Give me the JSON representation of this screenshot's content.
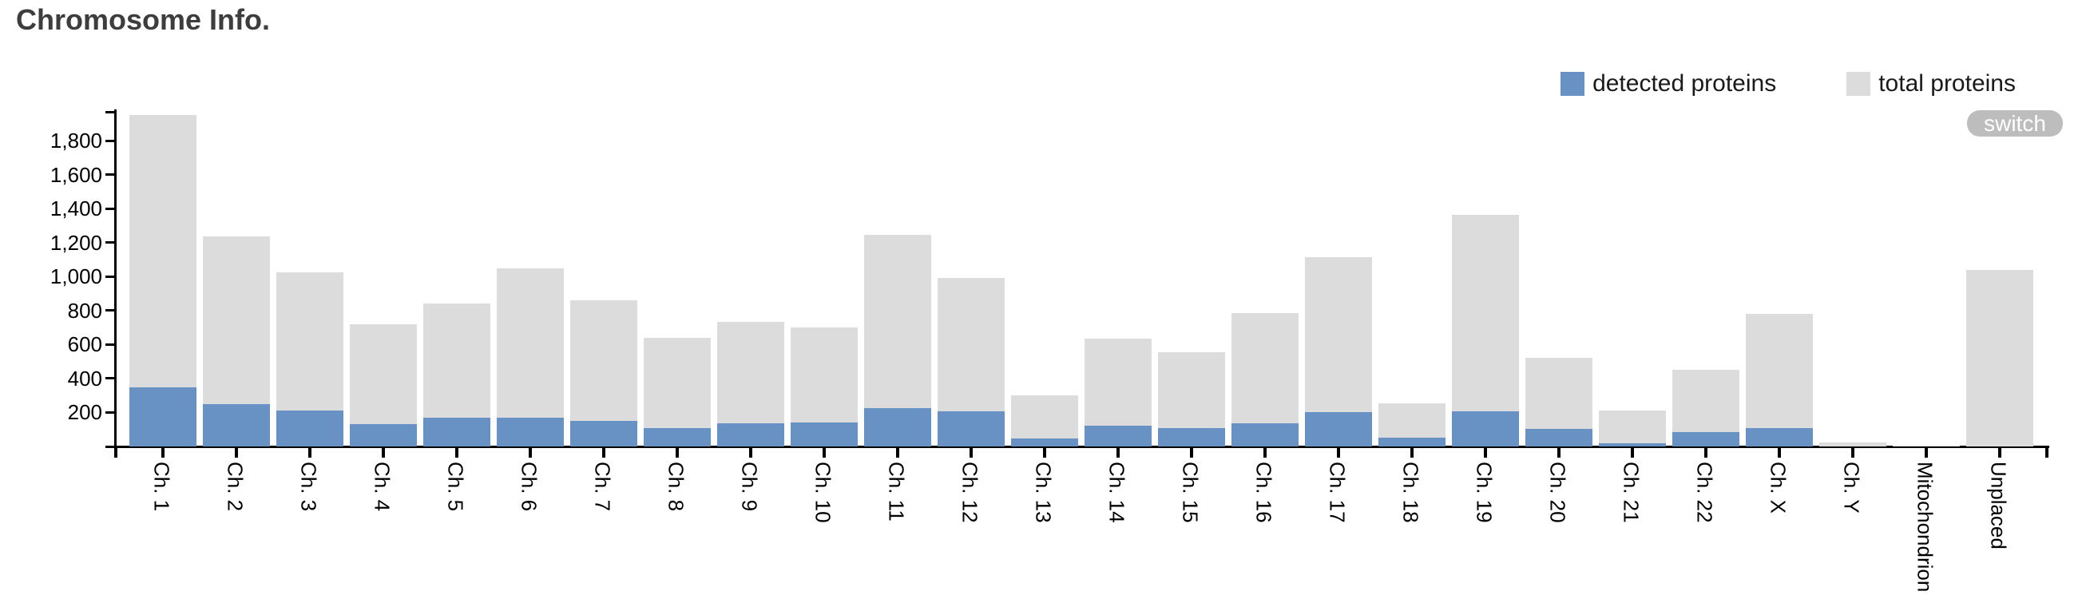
{
  "title": "Chromosome Info.",
  "legend": {
    "detected": "detected proteins",
    "total": "total proteins"
  },
  "switch_label": "switch",
  "colors": {
    "detected": "#6892c4",
    "total": "#dcdcdc",
    "axis": "#000000",
    "title": "#3d3d3d",
    "switch_bg": "#bdbdbd",
    "switch_text": "#ffffff"
  },
  "chart_data": {
    "type": "bar",
    "subtype": "overlay",
    "title": "Chromosome Info.",
    "xlabel": "",
    "ylabel": "",
    "grid": false,
    "legend_position": "top-right",
    "ylim": [
      0,
      1970
    ],
    "yticks": [
      200,
      400,
      600,
      800,
      1000,
      1200,
      1400,
      1600,
      1800
    ],
    "ytick_labels": [
      "200",
      "400",
      "600",
      "800",
      "1,000",
      "1,200",
      "1,400",
      "1,600",
      "1,800"
    ],
    "categories": [
      "Ch. 1",
      "Ch. 2",
      "Ch. 3",
      "Ch. 4",
      "Ch. 5",
      "Ch. 6",
      "Ch. 7",
      "Ch. 8",
      "Ch. 9",
      "Ch. 10",
      "Ch. 11",
      "Ch. 12",
      "Ch. 13",
      "Ch. 14",
      "Ch. 15",
      "Ch. 16",
      "Ch. 17",
      "Ch. 18",
      "Ch. 19",
      "Ch. 20",
      "Ch. 21",
      "Ch. 22",
      "Ch. X",
      "Ch. Y",
      "Mitochondrion",
      "Unplaced"
    ],
    "series": [
      {
        "name": "total proteins",
        "color": "#dcdcdc",
        "values": [
          1950,
          1235,
          1025,
          720,
          840,
          1050,
          860,
          640,
          735,
          700,
          1245,
          990,
          300,
          635,
          555,
          785,
          1115,
          255,
          1365,
          520,
          210,
          450,
          780,
          25,
          5,
          1040
        ]
      },
      {
        "name": "detected proteins",
        "color": "#6892c4",
        "values": [
          350,
          250,
          210,
          130,
          170,
          170,
          150,
          110,
          135,
          140,
          225,
          205,
          45,
          120,
          110,
          135,
          200,
          50,
          205,
          105,
          20,
          85,
          110,
          2,
          1,
          0
        ]
      }
    ]
  }
}
